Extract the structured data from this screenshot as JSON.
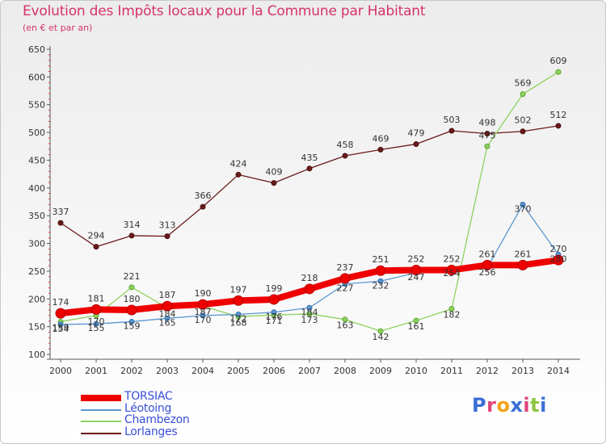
{
  "header": {
    "title": "Evolution des Impôts locaux pour la Commune par Habitant",
    "subtitle": "(en € et par an)"
  },
  "logo": {
    "text": "Proxiti",
    "letters": [
      {
        "ch": "P",
        "color": "#3b6fd6"
      },
      {
        "ch": "r",
        "color": "#e0457b"
      },
      {
        "ch": "o",
        "color": "#f2a31b"
      },
      {
        "ch": "x",
        "color": "#3b6fd6"
      },
      {
        "ch": "i",
        "color": "#e0457b"
      },
      {
        "ch": "t",
        "color": "#8cc63f"
      },
      {
        "ch": "i",
        "color": "#3b6fd6"
      }
    ]
  },
  "chart_data": {
    "type": "line",
    "title": "Evolution des Impôts locaux pour la Commune par Habitant",
    "subtitle": "(en € et par an)",
    "x": [
      2000,
      2001,
      2002,
      2003,
      2004,
      2005,
      2006,
      2007,
      2008,
      2009,
      2010,
      2011,
      2012,
      2013,
      2014
    ],
    "ylim": [
      100,
      650
    ],
    "yticks": [
      100,
      150,
      200,
      250,
      300,
      350,
      400,
      450,
      500,
      550,
      600,
      650
    ],
    "grid": false,
    "legend_position": "bottom-left",
    "series": [
      {
        "name": "TORSIAC",
        "color": "#ee0000",
        "values": [
          174,
          181,
          180,
          187,
          190,
          197,
          199,
          218,
          237,
          251,
          252,
          252,
          261,
          261,
          270
        ]
      },
      {
        "name": "Léotoing",
        "color": "#5b97d1",
        "values": [
          154,
          155,
          159,
          165,
          170,
          172,
          176,
          184,
          227,
          232,
          247,
          254,
          256,
          370,
          280
        ]
      },
      {
        "name": "Chambezon",
        "color": "#8ed25e",
        "values": [
          159,
          170,
          221,
          184,
          187,
          168,
          171,
          173,
          163,
          142,
          161,
          182,
          475,
          569,
          609
        ]
      },
      {
        "name": "Lorlanges",
        "color": "#6b1a1a",
        "values": [
          337,
          294,
          314,
          313,
          366,
          424,
          409,
          435,
          458,
          469,
          479,
          503,
          498,
          502,
          512
        ]
      }
    ],
    "labels": {
      "Lorlanges": [
        "337",
        "294",
        "314",
        "313",
        "366",
        "424",
        "409",
        "435",
        "458",
        "469",
        "479",
        "503",
        "498",
        "502",
        "512"
      ],
      "TORSIAC": [
        "174",
        "181",
        "180",
        "187",
        "190",
        "197",
        "199",
        "218",
        "237",
        "251",
        "252",
        "252",
        "261",
        "261",
        "270"
      ],
      "Léotoing": [
        "154",
        "155",
        "159",
        "165",
        "170",
        "172",
        "176",
        "184",
        "227",
        "232",
        "247",
        "254",
        "256",
        "370",
        "280"
      ],
      "Chambezon": [
        "159",
        "170",
        "221",
        "184",
        "187",
        "168",
        "171",
        "173",
        "163",
        "142",
        "161",
        "182",
        "475",
        "569",
        "609"
      ]
    }
  }
}
